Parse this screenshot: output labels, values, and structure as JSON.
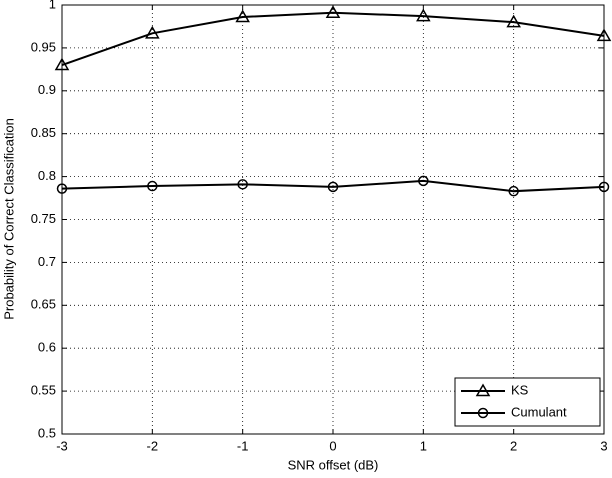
{
  "chart_data": {
    "type": "line",
    "xlabel": "SNR offset (dB)",
    "ylabel": "Probability of Correct Classification",
    "x": [
      -3,
      -2,
      -1,
      0,
      1,
      2,
      3
    ],
    "series": [
      {
        "name": "KS",
        "color": "#000000",
        "marker": "triangle",
        "values": [
          0.93,
          0.967,
          0.986,
          0.991,
          0.987,
          0.98,
          0.964
        ]
      },
      {
        "name": "Cumulant",
        "color": "#000000",
        "marker": "circle",
        "values": [
          0.786,
          0.789,
          0.791,
          0.788,
          0.795,
          0.783,
          0.788
        ]
      }
    ],
    "xlim": [
      -3,
      3
    ],
    "xticks": [
      -3,
      -2,
      -1,
      0,
      1,
      2,
      3
    ],
    "ylim": [
      0.5,
      1
    ],
    "yticks": [
      0.5,
      0.55,
      0.6,
      0.65,
      0.7,
      0.75,
      0.8,
      0.85,
      0.9,
      0.95,
      1
    ],
    "grid": true,
    "legend": "lower right"
  }
}
